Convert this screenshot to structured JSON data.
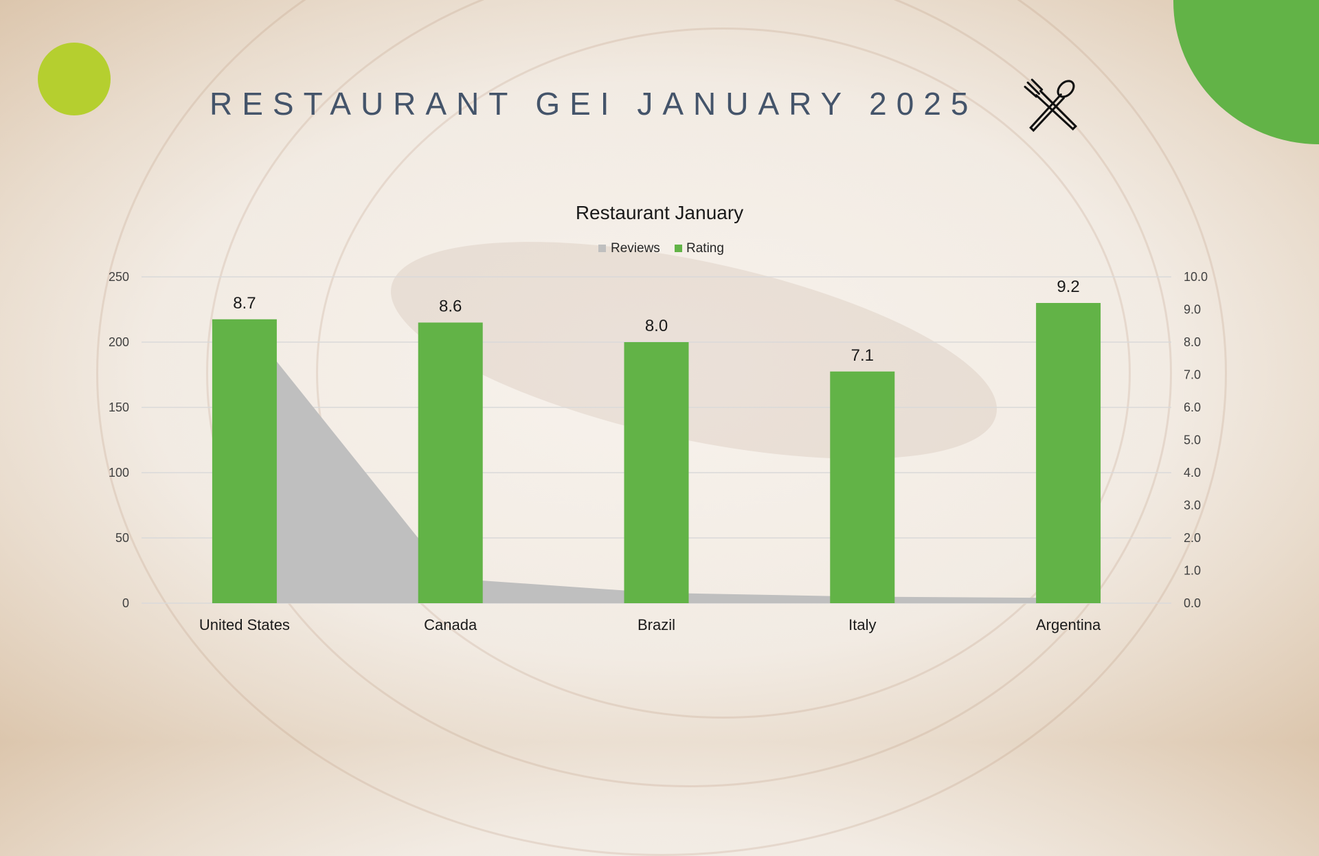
{
  "slide": {
    "title": "RESTAURANT GEI JANUARY 2025",
    "accent_dot_color": "#b5cf2f",
    "corner_color": "#62b347",
    "icon": "fork-spoon-crossed-icon"
  },
  "chart_data": {
    "type": "bar+area",
    "title": "Restaurant January",
    "legend": [
      "Reviews",
      "Rating"
    ],
    "legend_position": "top",
    "categories": [
      "United States",
      "Canada",
      "Brazil",
      "Italy",
      "Argentina"
    ],
    "series": [
      {
        "name": "Reviews",
        "type": "area",
        "axis": "left",
        "color": "#bfbfbf",
        "values": [
          216,
          19,
          8,
          5,
          4
        ]
      },
      {
        "name": "Rating",
        "type": "bar",
        "axis": "right",
        "color": "#62b347",
        "values": [
          8.7,
          8.6,
          8.0,
          7.1,
          9.2
        ],
        "data_labels": [
          "8.7",
          "8.6",
          "8.0",
          "7.1",
          "9.2"
        ]
      }
    ],
    "y_left": {
      "min": 0,
      "max": 250,
      "ticks": [
        "0",
        "50",
        "100",
        "150",
        "200",
        "250"
      ]
    },
    "y_right": {
      "min": 0,
      "max": 10,
      "ticks": [
        "0.0",
        "1.0",
        "2.0",
        "3.0",
        "4.0",
        "5.0",
        "6.0",
        "7.0",
        "8.0",
        "9.0",
        "10.0"
      ]
    },
    "grid": true
  }
}
